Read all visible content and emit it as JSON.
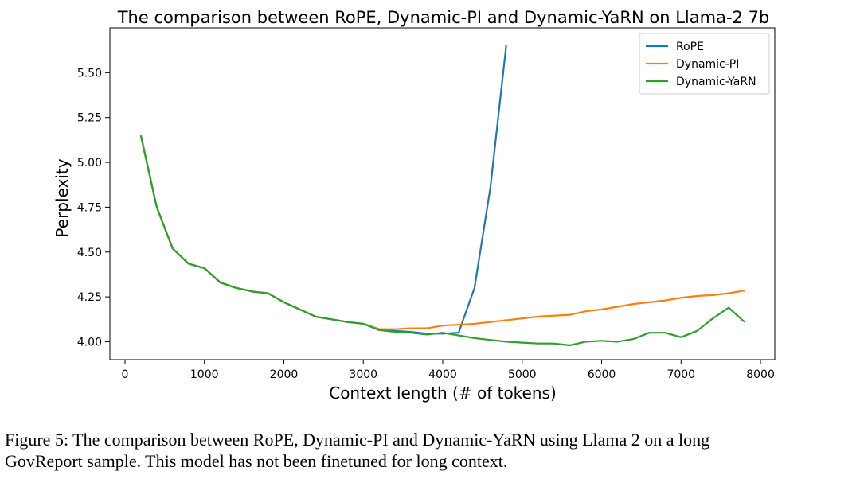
{
  "chart_data": {
    "type": "line",
    "title": "The comparison between RoPE, Dynamic-PI and Dynamic-YaRN on Llama-2 7b",
    "xlabel": "Context length (# of tokens)",
    "ylabel": "Perplexity",
    "xlim": [
      -190,
      8180
    ],
    "ylim": [
      3.9,
      5.75
    ],
    "xticks": [
      0,
      1000,
      2000,
      3000,
      4000,
      5000,
      6000,
      7000,
      8000
    ],
    "yticks": [
      {
        "value": 4,
        "label": "4.00"
      },
      {
        "value": 4.25,
        "label": "4.25"
      },
      {
        "value": 4.5,
        "label": "4.50"
      },
      {
        "value": 4.75,
        "label": "4.75"
      },
      {
        "value": 5,
        "label": "5.00"
      },
      {
        "value": 5.25,
        "label": "5.25"
      },
      {
        "value": 5.5,
        "label": "5.50"
      }
    ],
    "legend": "upper right",
    "x": [
      200,
      400,
      600,
      800,
      1000,
      1200,
      1400,
      1600,
      1800,
      2000,
      2200,
      2400,
      2600,
      2800,
      3000,
      3200,
      3400,
      3600,
      3800,
      4000,
      4200,
      4400,
      4600,
      4800,
      5000,
      5200,
      5400,
      5600,
      5800,
      6000,
      6200,
      6400,
      6600,
      6800,
      7000,
      7200,
      7400,
      7600,
      7800
    ],
    "series": [
      {
        "name": "RoPE",
        "color": "#1f77b4",
        "values": [
          5.15,
          4.75,
          4.52,
          4.435,
          4.41,
          4.33,
          4.3,
          4.28,
          4.27,
          4.22,
          4.18,
          4.14,
          4.125,
          4.11,
          4.1,
          4.07,
          4.06,
          4.055,
          4.045,
          4.045,
          4.05,
          4.3,
          4.86,
          5.655,
          null,
          null,
          null,
          null,
          null,
          null,
          null,
          null,
          null,
          null,
          null,
          null,
          null,
          null,
          null
        ]
      },
      {
        "name": "Dynamic-PI",
        "color": "#ff7f0e",
        "values": [
          5.15,
          4.75,
          4.52,
          4.435,
          4.41,
          4.33,
          4.3,
          4.28,
          4.27,
          4.22,
          4.18,
          4.14,
          4.125,
          4.11,
          4.1,
          4.07,
          4.07,
          4.075,
          4.075,
          4.09,
          4.095,
          4.1,
          4.11,
          4.12,
          4.13,
          4.14,
          4.145,
          4.15,
          4.17,
          4.18,
          4.195,
          4.21,
          4.22,
          4.23,
          4.245,
          4.255,
          4.26,
          4.27,
          4.285
        ]
      },
      {
        "name": "Dynamic-YaRN",
        "color": "#2ca02c",
        "values": [
          5.15,
          4.75,
          4.52,
          4.435,
          4.41,
          4.33,
          4.3,
          4.28,
          4.27,
          4.22,
          4.18,
          4.14,
          4.125,
          4.11,
          4.1,
          4.065,
          4.055,
          4.05,
          4.04,
          4.05,
          4.035,
          4.02,
          4.01,
          4.0,
          3.995,
          3.99,
          3.99,
          3.98,
          4.0,
          4.005,
          4.0,
          4.015,
          4.05,
          4.05,
          4.025,
          4.06,
          4.13,
          4.19,
          4.11
        ]
      }
    ]
  },
  "caption": [
    "Figure 5: The comparison between RoPE, Dynamic-PI and Dynamic-YaRN using Llama 2 on a long",
    "GovReport sample. This model has not been finetuned for long context."
  ]
}
